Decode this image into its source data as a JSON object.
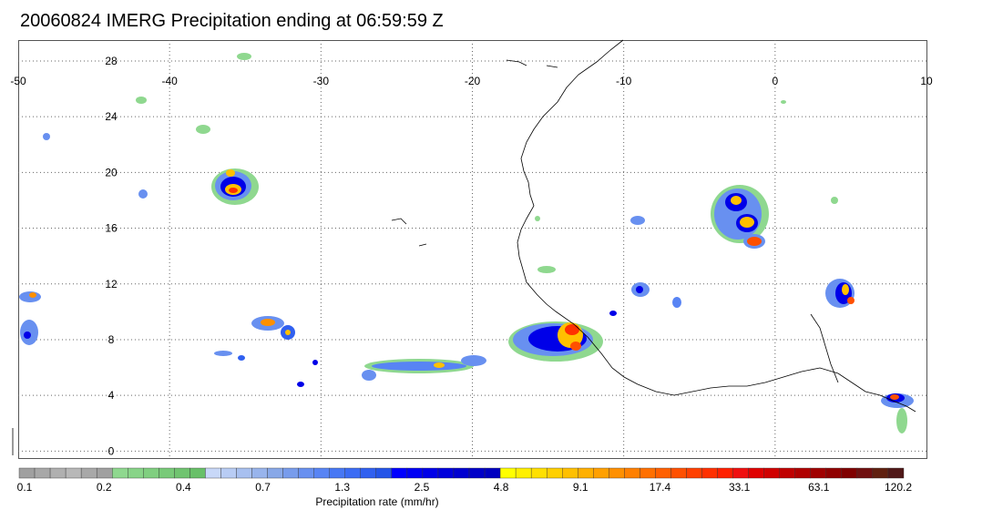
{
  "title": "20060824 IMERG Precipitation ending at 06:59:59 Z",
  "map": {
    "lon_ticks": [
      -50,
      -40,
      -30,
      -20,
      -10,
      0,
      10
    ],
    "lat_ticks": [
      0,
      4,
      8,
      12,
      16,
      20,
      24,
      28
    ],
    "lon_range": [
      -50,
      10
    ],
    "lat_range": [
      -0.5,
      29.5
    ]
  },
  "colorbar": {
    "label": "Precipitation rate (mm/hr)",
    "tick_labels": [
      "0.1",
      "0.2",
      "0.4",
      "0.7",
      "1.3",
      "2.5",
      "4.8",
      "9.1",
      "17.4",
      "33.1",
      "63.1",
      "120.2"
    ],
    "colors": [
      "#a0a0a0",
      "#a8a8a8",
      "#b0b0b0",
      "#b8b8b8",
      "#a8a8a8",
      "#a0a0a0",
      "#8fd88f",
      "#88d488",
      "#80cf80",
      "#78ca78",
      "#70c470",
      "#68c068",
      "#c8d8f8",
      "#b8ccf4",
      "#a8c0f0",
      "#98b4ec",
      "#88a8e8",
      "#789cec",
      "#6890f0",
      "#5884f4",
      "#4878f4",
      "#3c6cf4",
      "#3060f0",
      "#2454e8",
      "#0000ff",
      "#0000f4",
      "#0000e8",
      "#0000dc",
      "#0000d0",
      "#0000c8",
      "#0000c0",
      "#ffff00",
      "#fff000",
      "#ffe000",
      "#ffd000",
      "#ffc000",
      "#ffb000",
      "#ffa000",
      "#ff9000",
      "#ff8000",
      "#ff7000",
      "#ff6000",
      "#ff5000",
      "#ff4000",
      "#ff3000",
      "#ff2000",
      "#f01010",
      "#e00000",
      "#d00000",
      "#c00000",
      "#b00000",
      "#a00000",
      "#900000",
      "#800000",
      "#701010",
      "#602010",
      "#501818"
    ]
  }
}
